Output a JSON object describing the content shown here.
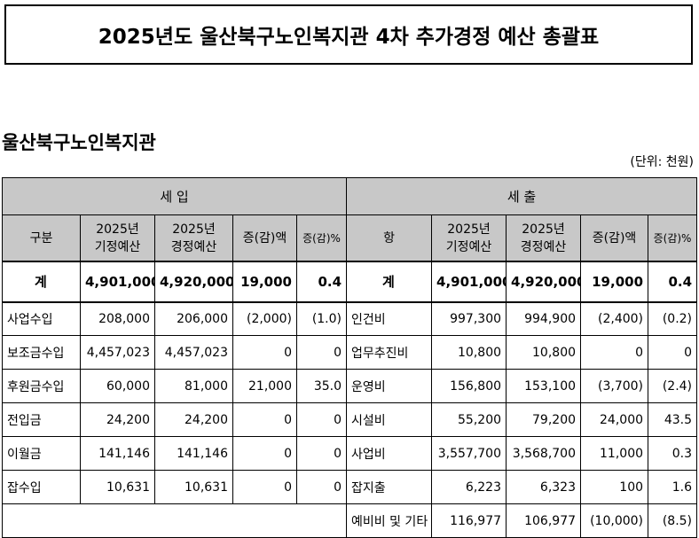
{
  "title": "2025년도  울산북구노인복지관  4차  추가경정  예산  총괄표",
  "org_name": "울산북구노인복지관",
  "unit": "(단위:  천원)",
  "sections": {
    "income": "세      입",
    "expense": "세      출"
  },
  "income_headers": {
    "category": "구분",
    "original_year": "2025년",
    "original_label": "기정예산",
    "revised_year": "2025년",
    "revised_label": "경정예산",
    "diff_amount": "증(감)액",
    "diff_pct": "증(감)%"
  },
  "expense_headers": {
    "category": "항",
    "original_year": "2025년",
    "original_label": "기정예산",
    "revised_year": "2025년",
    "revised_label": "경정예산",
    "diff_amount": "증(감)액",
    "diff_pct": "증(감)%"
  },
  "total": {
    "income": {
      "label": "계",
      "original": "4,901,000",
      "revised": "4,920,000",
      "diff": "19,000",
      "pct": "0.4"
    },
    "expense": {
      "label": "계",
      "original": "4,901,000",
      "revised": "4,920,000",
      "diff": "19,000",
      "pct": "0.4"
    }
  },
  "rows": [
    {
      "income": {
        "label": "사업수입",
        "original": "208,000",
        "revised": "206,000",
        "diff": "(2,000)",
        "pct": "(1.0)"
      },
      "expense": {
        "label": "인건비",
        "original": "997,300",
        "revised": "994,900",
        "diff": "(2,400)",
        "pct": "(0.2)"
      }
    },
    {
      "income": {
        "label": "보조금수입",
        "original": "4,457,023",
        "revised": "4,457,023",
        "diff": "0",
        "pct": "0"
      },
      "expense": {
        "label": "업무추진비",
        "original": "10,800",
        "revised": "10,800",
        "diff": "0",
        "pct": "0"
      }
    },
    {
      "income": {
        "label": "후원금수입",
        "original": "60,000",
        "revised": "81,000",
        "diff": "21,000",
        "pct": "35.0"
      },
      "expense": {
        "label": "운영비",
        "original": "156,800",
        "revised": "153,100",
        "diff": "(3,700)",
        "pct": "(2.4)"
      }
    },
    {
      "income": {
        "label": "전입금",
        "original": "24,200",
        "revised": "24,200",
        "diff": "0",
        "pct": "0"
      },
      "expense": {
        "label": "시설비",
        "original": "55,200",
        "revised": "79,200",
        "diff": "24,000",
        "pct": "43.5"
      }
    },
    {
      "income": {
        "label": "이월금",
        "original": "141,146",
        "revised": "141,146",
        "diff": "0",
        "pct": "0"
      },
      "expense": {
        "label": "사업비",
        "original": "3,557,700",
        "revised": "3,568,700",
        "diff": "11,000",
        "pct": "0.3"
      }
    },
    {
      "income": {
        "label": "잡수입",
        "original": "10,631",
        "revised": "10,631",
        "diff": "0",
        "pct": "0"
      },
      "expense": {
        "label": "잡지출",
        "original": "6,223",
        "revised": "6,323",
        "diff": "100",
        "pct": "1.6"
      }
    },
    {
      "income": {
        "label": "",
        "original": "",
        "revised": "",
        "diff": "",
        "pct": ""
      },
      "expense": {
        "label": "예비비 및 기타",
        "original": "116,977",
        "revised": "106,977",
        "diff": "(10,000)",
        "pct": "(8.5)"
      }
    }
  ]
}
